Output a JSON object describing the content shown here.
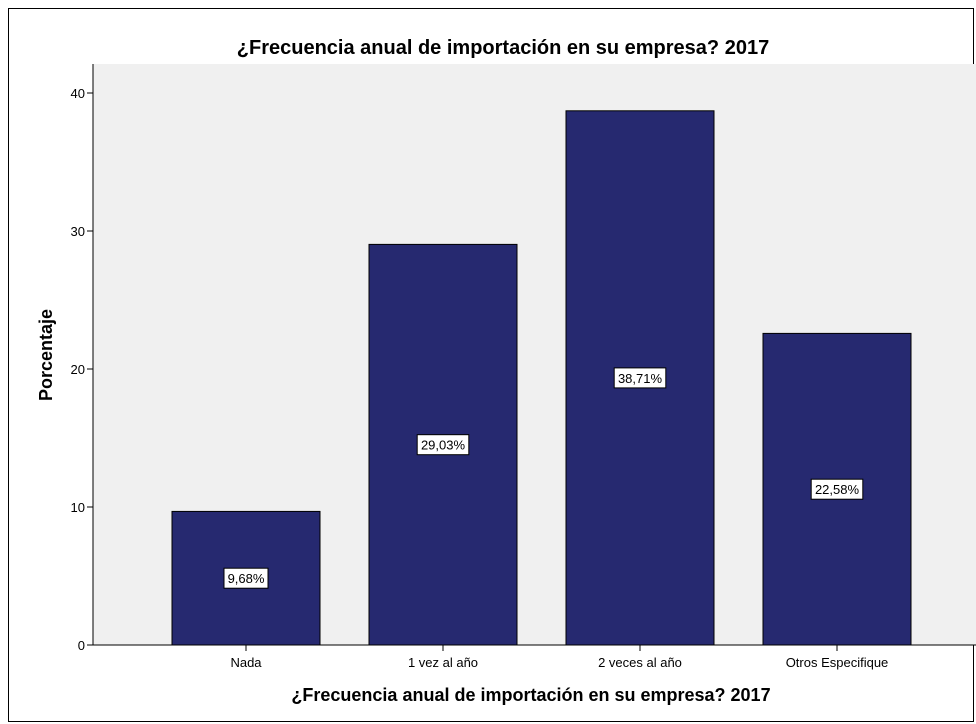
{
  "chart_data": {
    "type": "bar",
    "title": "¿Frecuencia anual de importación en su empresa? 2017",
    "xlabel": "¿Frecuencia anual de importación en su empresa? 2017",
    "ylabel": "Porcentaje",
    "categories": [
      "Nada",
      "1 vez al año",
      "2 veces al año",
      "Otros Especifique"
    ],
    "values": [
      9.68,
      29.03,
      38.71,
      22.58
    ],
    "data_labels": [
      "9,68%",
      "29,03%",
      "38,71%",
      "22,58%"
    ],
    "yticks": [
      0,
      10,
      20,
      30,
      40
    ],
    "ylim": [
      0,
      42
    ],
    "grid": false,
    "colors": {
      "bar": "#262970",
      "plot_background": "#f0f0f0",
      "label_box": "#ffffff"
    }
  }
}
